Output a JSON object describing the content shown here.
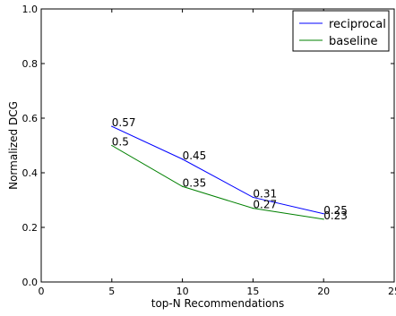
{
  "chart_data": {
    "type": "line",
    "title": "",
    "xlabel": "top-N Recommendations",
    "ylabel": "Normalized DCG",
    "xlim": [
      0,
      25
    ],
    "ylim": [
      0.0,
      1.0
    ],
    "x_ticks": [
      0,
      5,
      10,
      15,
      20,
      25
    ],
    "y_ticks": [
      0.0,
      0.2,
      0.4,
      0.6,
      0.8,
      1.0
    ],
    "x_tick_labels": [
      "0",
      "5",
      "10",
      "15",
      "20",
      "25"
    ],
    "y_tick_labels": [
      "0.0",
      "0.2",
      "0.4",
      "0.6",
      "0.8",
      "1.0"
    ],
    "grid": false,
    "legend_position": "top-right",
    "x": [
      5,
      10,
      15,
      20
    ],
    "series": [
      {
        "name": "reciprocal",
        "color": "#0000ff",
        "values": [
          0.57,
          0.45,
          0.31,
          0.25
        ],
        "labels": [
          "0.57",
          "0.45",
          "0.31",
          "0.25"
        ]
      },
      {
        "name": "baseline",
        "color": "#008000",
        "values": [
          0.5,
          0.35,
          0.27,
          0.23
        ],
        "labels": [
          "0.5",
          "0.35",
          "0.27",
          "0.23"
        ]
      }
    ]
  }
}
